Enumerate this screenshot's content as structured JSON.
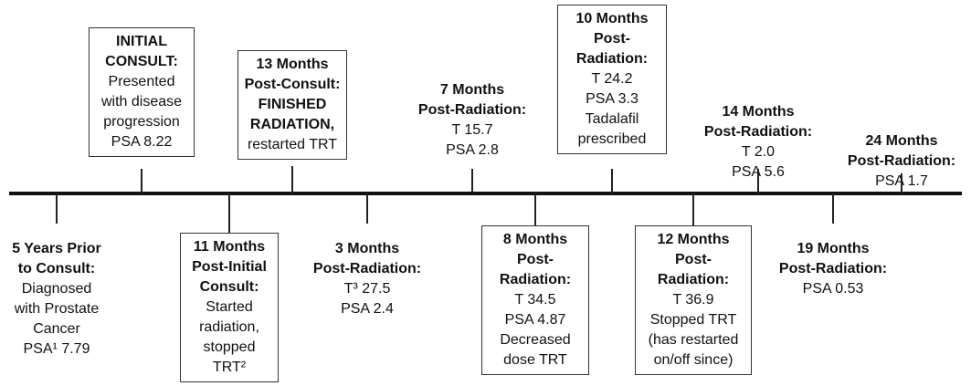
{
  "events": [
    {
      "heading": [
        "INITIAL",
        "CONSULT:"
      ],
      "body": [
        "Presented",
        "with disease",
        "progression",
        "PSA 8.22"
      ]
    },
    {
      "heading": [
        "13 Months",
        "Post-Consult:",
        "FINISHED",
        "RADIATION,"
      ],
      "body": [
        "restarted TRT"
      ]
    },
    {
      "heading": [
        "7 Months",
        "Post-Radiation:"
      ],
      "body": [
        "T 15.7",
        "PSA 2.8"
      ]
    },
    {
      "heading": [
        "10 Months",
        "Post-",
        "Radiation:"
      ],
      "body": [
        "T 24.2",
        "PSA 3.3",
        "Tadalafil",
        "prescribed"
      ]
    },
    {
      "heading": [
        "14 Months",
        "Post-Radiation:"
      ],
      "body": [
        "T 2.0",
        "PSA 5.6"
      ]
    },
    {
      "heading": [
        "24 Months",
        "Post-Radiation:"
      ],
      "body": [
        "PSA 1.7"
      ]
    },
    {
      "heading": [
        "5 Years Prior",
        "to Consult:"
      ],
      "body": [
        "Diagnosed",
        "with Prostate",
        "Cancer",
        "PSA¹ 7.79"
      ]
    },
    {
      "heading": [
        "11 Months",
        "Post-Initial",
        "Consult:"
      ],
      "body": [
        "Started",
        "radiation,",
        "stopped",
        "TRT²"
      ]
    },
    {
      "heading": [
        "3 Months",
        "Post-Radiation:"
      ],
      "body": [
        "T³ 27.5",
        "PSA 2.4"
      ]
    },
    {
      "heading": [
        "8 Months",
        "Post-",
        "Radiation:"
      ],
      "body": [
        "T 34.5",
        "PSA 4.87",
        "Decreased",
        "dose TRT"
      ]
    },
    {
      "heading": [
        "12 Months",
        "Post-",
        "Radiation:"
      ],
      "body": [
        "T 36.9",
        "Stopped TRT",
        "(has restarted",
        "on/off since)"
      ]
    },
    {
      "heading": [
        "19 Months",
        "Post-Radiation:"
      ],
      "body": [
        "PSA 0.53"
      ]
    }
  ]
}
